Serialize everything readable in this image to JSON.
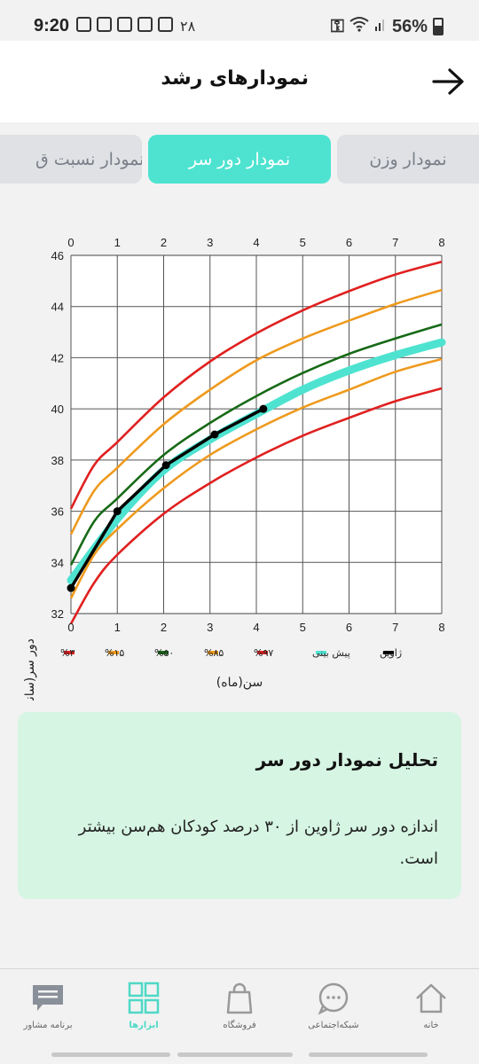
{
  "status_bar": {
    "time": "9:20",
    "date_num": "۲۸",
    "battery": "56%"
  },
  "header": {
    "title": "نمودارهای رشد",
    "back_icon": "arrow-right-icon"
  },
  "tabs": [
    {
      "label": "نمودار وزن",
      "active": false
    },
    {
      "label": "نمودار دور سر",
      "active": true
    },
    {
      "label": "نمودار نسبت ق",
      "active": false
    }
  ],
  "colors": {
    "accent": "#4ee3d0",
    "p3": "#e02020",
    "p15": "#ee9a1e",
    "p50": "#176a17",
    "p85": "#ee9a1e",
    "p97": "#e02020",
    "prediction": "#4ee3d0",
    "child": "#000000"
  },
  "chart_data": {
    "type": "line",
    "xlabel": "سن(ماه)",
    "ylabel": "دور سر(سانتی‌متر)",
    "x_ticks": [
      "0",
      "1",
      "2",
      "3",
      "4",
      "5",
      "6",
      "7",
      "8"
    ],
    "y_ticks": [
      "32",
      "34",
      "36",
      "38",
      "40",
      "42",
      "44",
      "46"
    ],
    "xlim": [
      0,
      8
    ],
    "ylim": [
      32,
      46
    ],
    "grid": true,
    "legend_placement": "bottom",
    "x": [
      0,
      0.5,
      1,
      2,
      3,
      4,
      5,
      6,
      7,
      8
    ],
    "series": [
      {
        "name": "%۳",
        "key": "p3",
        "values": [
          31.6,
          33.2,
          34.3,
          35.9,
          37.1,
          38.1,
          38.95,
          39.65,
          40.3,
          40.8
        ]
      },
      {
        "name": "%۱۵",
        "key": "p15",
        "values": [
          32.6,
          34.3,
          35.3,
          36.9,
          38.2,
          39.2,
          40.05,
          40.75,
          41.45,
          41.95
        ]
      },
      {
        "name": "%۵۰",
        "key": "p50",
        "values": [
          33.9,
          35.6,
          36.5,
          38.2,
          39.45,
          40.5,
          41.4,
          42.15,
          42.75,
          43.3
        ]
      },
      {
        "name": "%۸۵",
        "key": "p85",
        "values": [
          35.1,
          36.8,
          37.7,
          39.4,
          40.75,
          41.9,
          42.75,
          43.45,
          44.1,
          44.65
        ]
      },
      {
        "name": "%۹۷",
        "key": "p97",
        "values": [
          36.1,
          37.8,
          38.7,
          40.45,
          41.85,
          42.95,
          43.85,
          44.6,
          45.25,
          45.75
        ]
      }
    ],
    "prediction": {
      "name": "پیش بینی",
      "x": [
        0,
        1,
        2,
        3,
        4,
        5,
        6,
        7,
        8
      ],
      "values": [
        33.3,
        35.7,
        37.6,
        38.8,
        39.8,
        40.75,
        41.5,
        42.1,
        42.6
      ]
    },
    "child": {
      "name": "ژاوین",
      "x": [
        0,
        1,
        2.05,
        3.1,
        4.15
      ],
      "values": [
        33.0,
        36.0,
        37.8,
        39.0,
        40.0
      ]
    }
  },
  "analysis": {
    "title": "تحلیل نمودار دور سر",
    "text": "اندازه دور سر ژاوین از ۳۰ درصد کودکان هم‌سن بیشتر است."
  },
  "bottom_nav": [
    {
      "label": "خانه",
      "icon": "home-icon",
      "active": false
    },
    {
      "label": "شبکه‌اجتماعی",
      "icon": "chat-bubble-icon",
      "active": false
    },
    {
      "label": "فروشگاه",
      "icon": "shopping-bag-icon",
      "active": false
    },
    {
      "label": "ابزارها",
      "icon": "grid-tools-icon",
      "active": true
    },
    {
      "label": "برنامه مشاور",
      "icon": "message-icon",
      "active": false
    }
  ]
}
